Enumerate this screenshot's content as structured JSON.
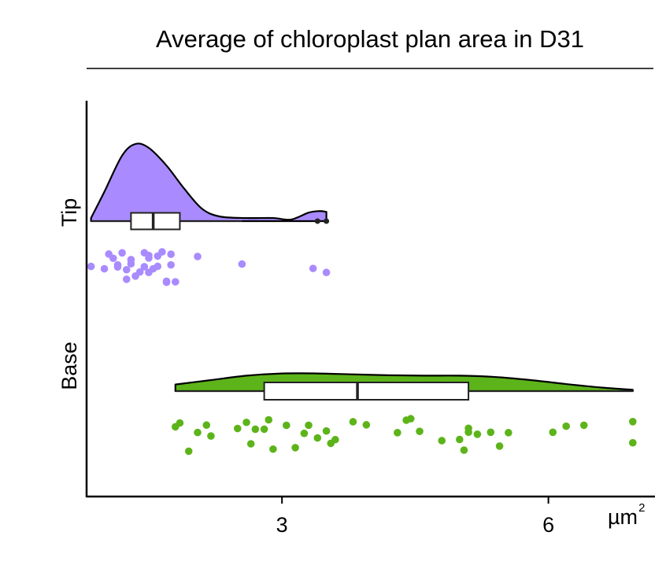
{
  "chart_data": {
    "type": "raincloud",
    "title": "Average of chloroplast plan area in D31",
    "xlabel": "",
    "ylabel": "",
    "unit": "µm",
    "unit_sup": "2",
    "xlim": [
      0.8,
      7.2
    ],
    "xticks": [
      3,
      6
    ],
    "xtick_labels": [
      "3",
      "6"
    ],
    "grid": false,
    "groups": [
      {
        "name": "Tip",
        "color": "#a98bff",
        "box": {
          "min": 0.85,
          "q1": 1.3,
          "median": 1.55,
          "q3": 1.85,
          "max": 2.55
        },
        "outliers": [
          3.4,
          3.5
        ],
        "density": [
          [
            0.85,
            0.04
          ],
          [
            1.0,
            0.38
          ],
          [
            1.2,
            0.85
          ],
          [
            1.35,
            1.0
          ],
          [
            1.5,
            0.95
          ],
          [
            1.7,
            0.72
          ],
          [
            1.9,
            0.42
          ],
          [
            2.1,
            0.16
          ],
          [
            2.3,
            0.06
          ],
          [
            2.6,
            0.04
          ],
          [
            2.9,
            0.04
          ],
          [
            3.1,
            0.02
          ],
          [
            3.3,
            0.11
          ],
          [
            3.42,
            0.13
          ],
          [
            3.5,
            0.12
          ]
        ],
        "points": [
          0.85,
          1.0,
          1.05,
          1.1,
          1.15,
          1.15,
          1.2,
          1.25,
          1.25,
          1.3,
          1.3,
          1.35,
          1.4,
          1.45,
          1.45,
          1.5,
          1.5,
          1.5,
          1.55,
          1.6,
          1.6,
          1.65,
          1.7,
          1.7,
          1.75,
          1.75,
          1.8,
          2.05,
          2.55,
          3.35,
          3.5
        ]
      },
      {
        "name": "Base",
        "color": "#5db41a",
        "box": {
          "min": 1.8,
          "q1": 2.8,
          "median": 3.85,
          "q3": 5.1,
          "max": 6.95
        },
        "outliers": [],
        "density": [
          [
            1.8,
            0.3
          ],
          [
            2.2,
            0.5
          ],
          [
            2.6,
            0.7
          ],
          [
            3.0,
            0.8
          ],
          [
            3.4,
            0.8
          ],
          [
            3.8,
            0.76
          ],
          [
            4.2,
            0.72
          ],
          [
            4.6,
            0.7
          ],
          [
            5.0,
            0.7
          ],
          [
            5.4,
            0.64
          ],
          [
            5.8,
            0.5
          ],
          [
            6.2,
            0.32
          ],
          [
            6.6,
            0.16
          ],
          [
            6.95,
            0.06
          ]
        ],
        "points": [
          1.8,
          1.85,
          1.95,
          2.05,
          2.15,
          2.2,
          2.5,
          2.6,
          2.65,
          2.7,
          2.8,
          2.85,
          2.9,
          3.05,
          3.15,
          3.25,
          3.3,
          3.4,
          3.5,
          3.55,
          3.6,
          3.8,
          3.95,
          4.3,
          4.4,
          4.45,
          4.55,
          4.8,
          5.0,
          5.05,
          5.1,
          5.1,
          5.2,
          5.35,
          5.45,
          5.55,
          6.05,
          6.2,
          6.4,
          6.95,
          6.95
        ]
      }
    ]
  }
}
